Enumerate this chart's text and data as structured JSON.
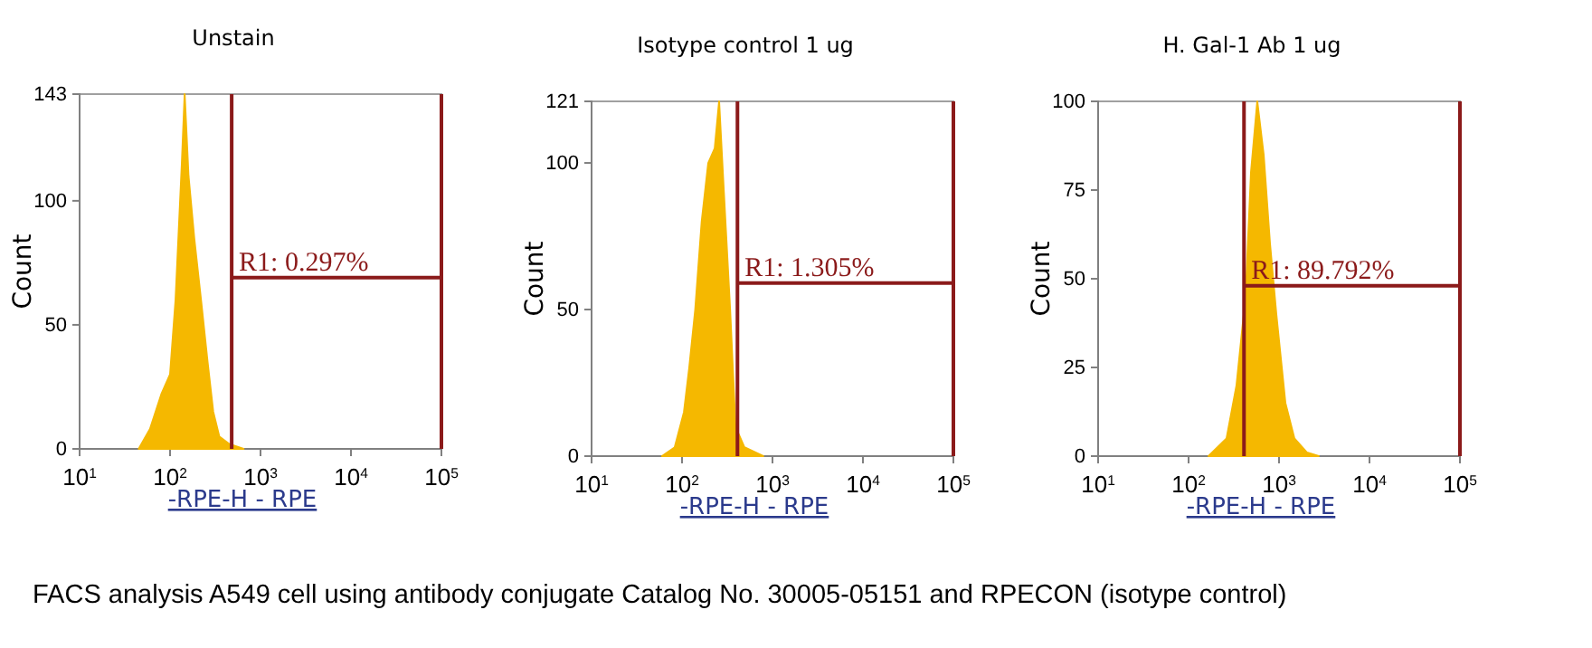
{
  "chart_data": [
    {
      "type": "area",
      "title": "Unstain",
      "xlabel": "-RPE-H - RPE",
      "ylabel": "Count",
      "log": "x",
      "xlim": [
        10,
        100000
      ],
      "ylim": [
        0,
        143
      ],
      "xticks": [
        {
          "value": 10,
          "label": "10$^{1}$"
        },
        {
          "value": 100,
          "label": "10$^{2}$"
        },
        {
          "value": 1000,
          "label": "10$^{3}$"
        },
        {
          "value": 10000,
          "label": "10$^{4}$"
        },
        {
          "value": 100000,
          "label": "10$^{5}$"
        }
      ],
      "yticks": [
        0,
        50,
        100,
        143
      ],
      "series": [
        {
          "color": "#f5b800",
          "x": [
            45,
            60,
            80,
            100,
            115,
            135,
            145,
            160,
            185,
            220,
            260,
            300,
            350,
            450,
            650
          ],
          "values": [
            0,
            8,
            22,
            30,
            60,
            115,
            143,
            110,
            85,
            60,
            35,
            15,
            5,
            2,
            0
          ]
        },
        {
          "type": "line",
          "color": "#8b1a1a",
          "x": [
            480,
            100000
          ],
          "values": [
            69,
            69
          ]
        }
      ],
      "ref_lines": [
        {
          "axis": "x",
          "value": 480,
          "color": "#8b1a1a"
        },
        {
          "axis": "x",
          "value": 100000,
          "color": "#8b1a1a"
        }
      ],
      "annotations": [
        "R1: 0.297%",
        "FACS analysis A549 cell using antibody conjugate Catalog No. 30005-05151 and RPECON (isotype control)"
      ]
    },
    {
      "type": "area",
      "title": "Isotype control 1 ug",
      "xlabel": "-RPE-H - RPE",
      "ylabel": "Count",
      "log": "x",
      "xlim": [
        10,
        100000
      ],
      "ylim": [
        0,
        121
      ],
      "xticks": [
        {
          "value": 10,
          "label": "10$^{1}$"
        },
        {
          "value": 100,
          "label": "10$^{2}$"
        },
        {
          "value": 1000,
          "label": "10$^{3}$"
        },
        {
          "value": 10000,
          "label": "10$^{4}$"
        },
        {
          "value": 100000,
          "label": "10$^{5}$"
        }
      ],
      "yticks": [
        0,
        50,
        100,
        121
      ],
      "series": [
        {
          "color": "#f5b800",
          "x": [
            60,
            83,
            105,
            120,
            140,
            165,
            195,
            230,
            257,
            290,
            340,
            390,
            490,
            790
          ],
          "values": [
            0,
            3,
            15,
            30,
            50,
            80,
            100,
            105,
            121,
            90,
            50,
            10,
            3,
            0
          ]
        },
        {
          "type": "line",
          "color": "#8b1a1a",
          "x": [
            410,
            100000
          ],
          "values": [
            59,
            59
          ]
        }
      ],
      "ref_lines": [
        {
          "axis": "x",
          "value": 410,
          "color": "#8b1a1a"
        },
        {
          "axis": "x",
          "value": 100000,
          "color": "#8b1a1a"
        }
      ],
      "annotations": [
        "R1: 1.305%"
      ]
    },
    {
      "type": "area",
      "title": "H. Gal-1 Ab 1 ug",
      "xlabel": "-RPE-H - RPE",
      "ylabel": "Count",
      "log": "x",
      "xlim": [
        10,
        100000
      ],
      "ylim": [
        0,
        100
      ],
      "xticks": [
        {
          "value": 10,
          "label": "10$^{1}$"
        },
        {
          "value": 100,
          "label": "10$^{2}$"
        },
        {
          "value": 1000,
          "label": "10$^{3}$"
        },
        {
          "value": 10000,
          "label": "10$^{4}$"
        },
        {
          "value": 100000,
          "label": "10$^{5}$"
        }
      ],
      "yticks": [
        0,
        25,
        50,
        75,
        100
      ],
      "series": [
        {
          "color": "#f5b800",
          "x": [
            166,
            263,
            339,
            427,
            490,
            575,
            676,
            794,
            933,
            1175,
            1479,
            2040,
            2750
          ],
          "values": [
            0,
            5,
            20,
            45,
            80,
            100,
            85,
            60,
            40,
            15,
            5,
            1,
            0
          ]
        },
        {
          "type": "line",
          "color": "#8b1a1a",
          "x": [
            410,
            100000
          ],
          "values": [
            48,
            48
          ]
        }
      ],
      "ref_lines": [
        {
          "axis": "x",
          "value": 410,
          "color": "#8b1a1a"
        },
        {
          "axis": "x",
          "value": 100000,
          "color": "#8b1a1a"
        }
      ],
      "annotations": [
        "R1: 89.792%"
      ]
    }
  ]
}
